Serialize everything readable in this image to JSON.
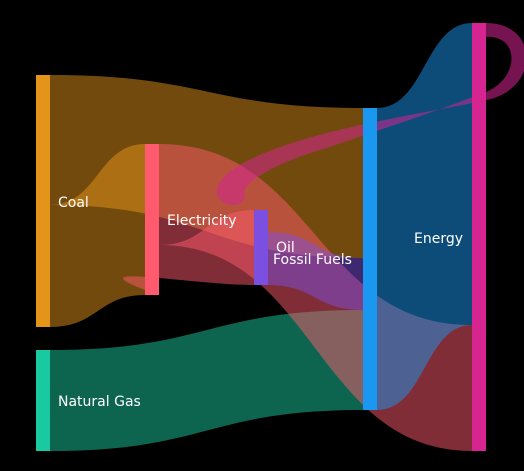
{
  "chart_data": {
    "type": "sankey",
    "nodes": [
      {
        "id": "coal",
        "label": "Coal",
        "color": "#e5941a"
      },
      {
        "id": "natural_gas",
        "label": "Natural Gas",
        "color": "#19c9a0"
      },
      {
        "id": "electricity",
        "label": "Electricity",
        "color": "#ff5a6e"
      },
      {
        "id": "oil",
        "label": "Oil",
        "color": "#7b4fe0"
      },
      {
        "id": "fossil_fuels",
        "label": "Fossil Fuels",
        "color": "#1a97f0"
      },
      {
        "id": "energy",
        "label": "Energy",
        "color": "#d62591"
      }
    ],
    "links": [
      {
        "source": "coal",
        "target": "fossil_fuels",
        "value": 25,
        "color": "#e5941a"
      },
      {
        "source": "coal",
        "target": "electricity",
        "value": 25,
        "color": "#e5941a"
      },
      {
        "source": "natural_gas",
        "target": "fossil_fuels",
        "value": 20,
        "color": "#19c9a0"
      },
      {
        "source": "electricity",
        "target": "energy",
        "value": 20,
        "color": "#ff5a6e"
      },
      {
        "source": "electricity",
        "target": "oil",
        "value": 5,
        "color": "#ff5a6e"
      },
      {
        "source": "oil",
        "target": "fossil_fuels",
        "value": 5,
        "color": "#7b4fe0"
      },
      {
        "source": "fossil_fuels",
        "target": "energy",
        "value": 50,
        "color": "#1a97f0"
      },
      {
        "source": "energy",
        "target": "fossil_fuels",
        "value": 3,
        "color": "#d62591"
      }
    ]
  }
}
